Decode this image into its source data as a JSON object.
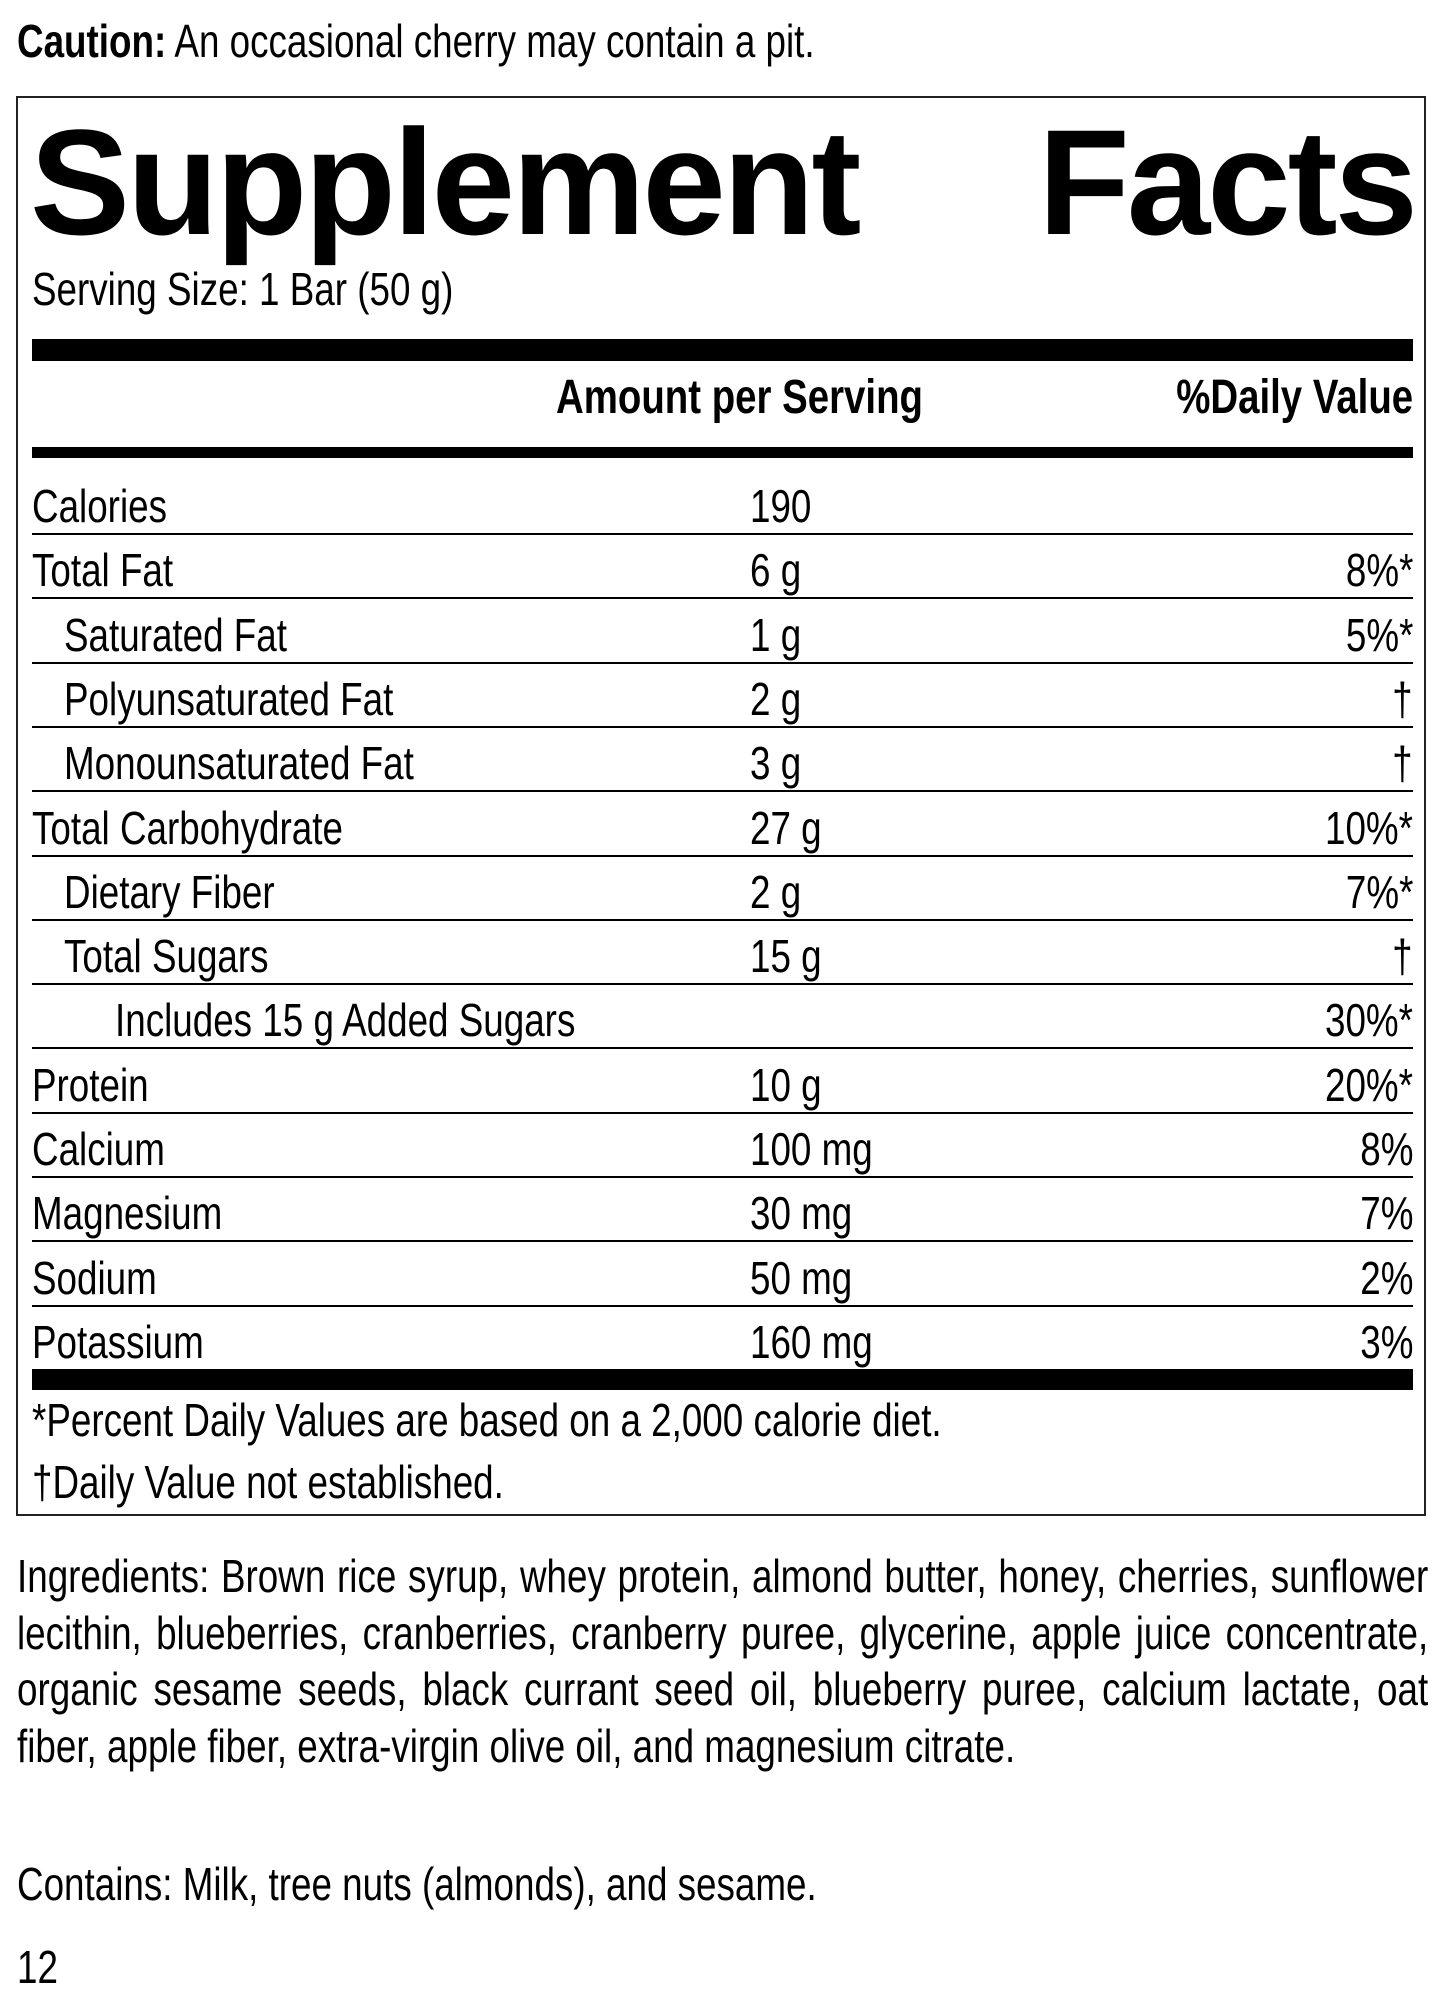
{
  "caution": {
    "label": "Caution:",
    "text": " An occasional cherry may contain a pit."
  },
  "panel": {
    "title_word1": "Supplement",
    "title_word2": "Facts",
    "serving_size": "Serving Size: 1 Bar (50 g)",
    "header_amount": "Amount per Serving",
    "header_dv": "%Daily Value",
    "rows": [
      {
        "label": "Calories",
        "amount": "190",
        "dv": "",
        "indent": 0
      },
      {
        "label": "Total Fat",
        "amount": "6 g",
        "dv": "8%*",
        "indent": 0
      },
      {
        "label": "Saturated Fat",
        "amount": "1 g",
        "dv": "5%*",
        "indent": 1
      },
      {
        "label": "Polyunsaturated Fat",
        "amount": "2 g",
        "dv": "†",
        "indent": 1
      },
      {
        "label": "Monounsaturated Fat",
        "amount": "3 g",
        "dv": "†",
        "indent": 1
      },
      {
        "label": "Total Carbohydrate",
        "amount": "27 g",
        "dv": "10%*",
        "indent": 0
      },
      {
        "label": "Dietary Fiber",
        "amount": "2 g",
        "dv": "7%*",
        "indent": 1
      },
      {
        "label": "Total Sugars",
        "amount": "15 g",
        "dv": "†",
        "indent": 1
      },
      {
        "label": "Includes 15 g Added Sugars",
        "amount": "",
        "dv": "30%*",
        "indent": 2
      },
      {
        "label": "Protein",
        "amount": "10 g",
        "dv": "20%*",
        "indent": 0
      },
      {
        "label": "Calcium",
        "amount": "100 mg",
        "dv": "8%",
        "indent": 0
      },
      {
        "label": "Magnesium",
        "amount": "30 mg",
        "dv": "7%",
        "indent": 0
      },
      {
        "label": "Sodium",
        "amount": "50 mg",
        "dv": "2%",
        "indent": 0
      },
      {
        "label": "Potassium",
        "amount": "160 mg",
        "dv": "3%",
        "indent": 0
      }
    ],
    "footnote_percent": "*Percent Daily Values are based on a 2,000 calorie diet.",
    "footnote_dagger": "†Daily Value not established."
  },
  "ingredients": "Ingredients: Brown rice syrup, whey protein, almond butter, honey, cherries, sunflower lecithin, blueberries, cranberries, cranberry puree, glycerine, apple juice concentrate, organic sesame seeds, black currant seed oil, blueberry puree, calcium lactate, oat fiber, apple fiber, extra-virgin olive oil, and magnesium citrate.",
  "contains": "Contains: Milk, tree nuts (almonds), and sesame.",
  "page_number": "12"
}
